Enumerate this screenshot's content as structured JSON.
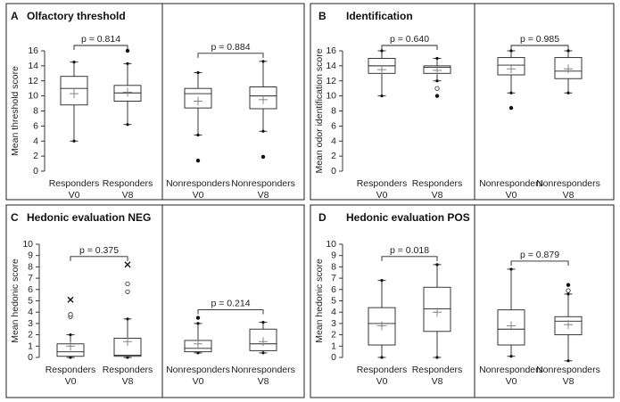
{
  "chart_data": [
    {
      "type": "boxplot",
      "panel_letter": "A",
      "title": "Olfactory threshold",
      "ylabel": "Mean threshold score",
      "ylim": [
        0,
        16
      ],
      "yticks": [
        0,
        2,
        4,
        6,
        8,
        10,
        12,
        14,
        16
      ],
      "groups": [
        {
          "name": "Responders",
          "pvalue": "p = 0.814",
          "boxes": [
            {
              "label1": "Responders",
              "label2": "V0",
              "min": 4.0,
              "q1": 8.8,
              "median": 11.0,
              "q3": 12.6,
              "max": 14.5,
              "mean": 10.3,
              "outliers": []
            },
            {
              "label1": "Responders",
              "label2": "V8",
              "min": 6.2,
              "q1": 9.3,
              "median": 10.4,
              "q3": 11.4,
              "max": 14.3,
              "mean": 10.5,
              "outliers": [
                {
                  "v": 16.0,
                  "s": "filled"
                }
              ]
            }
          ]
        },
        {
          "name": "Nonresponders",
          "pvalue": "p = 0.884",
          "boxes": [
            {
              "label1": "Nonresponders",
              "label2": "V0",
              "min": 4.8,
              "q1": 8.4,
              "median": 10.3,
              "q3": 11.0,
              "max": 13.1,
              "mean": 9.3,
              "outliers": [
                {
                  "v": 1.4,
                  "s": "filled"
                }
              ]
            },
            {
              "label1": "Nonresponders",
              "label2": "V8",
              "min": 5.3,
              "q1": 8.3,
              "median": 10.0,
              "q3": 11.2,
              "max": 14.6,
              "mean": 9.5,
              "outliers": [
                {
                  "v": 1.9,
                  "s": "filled"
                }
              ]
            }
          ]
        }
      ]
    },
    {
      "type": "boxplot",
      "panel_letter": "B",
      "title": "Identification",
      "ylabel": "Mean odor identification score",
      "ylim": [
        0,
        16
      ],
      "yticks": [
        0,
        2,
        4,
        6,
        8,
        10,
        12,
        14,
        16
      ],
      "groups": [
        {
          "name": "Responders",
          "pvalue": "p = 0.640",
          "boxes": [
            {
              "label1": "Responders",
              "label2": "V0",
              "min": 10.0,
              "q1": 13.0,
              "median": 14.0,
              "q3": 15.0,
              "max": 16.0,
              "mean": 13.5,
              "outliers": []
            },
            {
              "label1": "Responders",
              "label2": "V8",
              "min": 12.0,
              "q1": 13.0,
              "median": 13.8,
              "q3": 14.0,
              "max": 15.0,
              "mean": 13.4,
              "outliers": [
                {
                  "v": 11.0,
                  "s": "open"
                },
                {
                  "v": 10.0,
                  "s": "filled"
                }
              ]
            }
          ]
        },
        {
          "name": "Nonresponders",
          "pvalue": "p = 0.985",
          "boxes": [
            {
              "label1": "Nonresponders",
              "label2": "V0",
              "min": 10.4,
              "q1": 12.8,
              "median": 14.1,
              "q3": 15.1,
              "max": 16.0,
              "mean": 13.6,
              "outliers": [
                {
                  "v": 8.4,
                  "s": "filled"
                }
              ]
            },
            {
              "label1": "Nonresponders",
              "label2": "V8",
              "min": 10.4,
              "q1": 12.3,
              "median": 13.3,
              "q3": 15.1,
              "max": 16.0,
              "mean": 13.6,
              "outliers": []
            }
          ]
        }
      ]
    },
    {
      "type": "boxplot",
      "panel_letter": "C",
      "title": "Hedonic evaluation NEG",
      "ylabel": "Mean hedonic score",
      "ylim": [
        0,
        10
      ],
      "yticks": [
        0,
        1,
        2,
        3,
        4,
        5,
        6,
        7,
        8,
        9,
        10
      ],
      "groups": [
        {
          "name": "Responders",
          "pvalue": "p = 0.375",
          "boxes": [
            {
              "label1": "Responders",
              "label2": "V0",
              "min": 0.0,
              "q1": 0.1,
              "median": 0.5,
              "q3": 1.2,
              "max": 2.0,
              "mean": 1.0,
              "outliers": [
                {
                  "v": 3.6,
                  "s": "open"
                },
                {
                  "v": 3.8,
                  "s": "open"
                },
                {
                  "v": 5.1,
                  "s": "star"
                }
              ]
            },
            {
              "label1": "Responders",
              "label2": "V8",
              "min": 0.0,
              "q1": 0.1,
              "median": 0.2,
              "q3": 1.7,
              "max": 3.4,
              "mean": 1.4,
              "outliers": [
                {
                  "v": 5.8,
                  "s": "open"
                },
                {
                  "v": 6.5,
                  "s": "open"
                },
                {
                  "v": 8.2,
                  "s": "star"
                }
              ]
            }
          ]
        },
        {
          "name": "Nonresponders",
          "pvalue": "p = 0.214",
          "boxes": [
            {
              "label1": "Nonresponders",
              "label2": "V0",
              "min": 0.4,
              "q1": 0.5,
              "median": 0.8,
              "q3": 1.5,
              "max": 3.0,
              "mean": 1.2,
              "outliers": [
                {
                  "v": 3.5,
                  "s": "filled"
                }
              ]
            },
            {
              "label1": "Nonresponders",
              "label2": "V8",
              "min": 0.4,
              "q1": 0.6,
              "median": 1.2,
              "q3": 2.5,
              "max": 3.1,
              "mean": 1.4,
              "outliers": []
            }
          ]
        }
      ]
    },
    {
      "type": "boxplot",
      "panel_letter": "D",
      "title": "Hedonic evaluation POS",
      "ylabel": "Mean hedonic score",
      "ylim": [
        0,
        10
      ],
      "yticks": [
        0,
        1,
        2,
        3,
        4,
        5,
        6,
        7,
        8,
        9,
        10
      ],
      "groups": [
        {
          "name": "Responders",
          "pvalue": "p = 0.018",
          "boxes": [
            {
              "label1": "Responders",
              "label2": "V0",
              "min": 0.0,
              "q1": 1.1,
              "median": 3.0,
              "q3": 4.4,
              "max": 6.8,
              "mean": 2.8,
              "outliers": []
            },
            {
              "label1": "Responders",
              "label2": "V8",
              "min": 0.0,
              "q1": 2.3,
              "median": 4.3,
              "q3": 6.2,
              "max": 8.2,
              "mean": 4.0,
              "outliers": []
            }
          ]
        },
        {
          "name": "Nonresponders",
          "pvalue": "p = 0.879",
          "boxes": [
            {
              "label1": "Nonresponders",
              "label2": "V0",
              "min": 0.1,
              "q1": 1.1,
              "median": 2.5,
              "q3": 4.2,
              "max": 7.8,
              "mean": 2.8,
              "outliers": []
            },
            {
              "label1": "Nonresponders",
              "label2": "V8",
              "min": -0.3,
              "q1": 2.0,
              "median": 3.2,
              "q3": 3.6,
              "max": 5.6,
              "mean": 2.9,
              "outliers": [
                {
                  "v": 6.4,
                  "s": "filled"
                },
                {
                  "v": 5.9,
                  "s": "open"
                }
              ]
            }
          ]
        }
      ]
    }
  ]
}
